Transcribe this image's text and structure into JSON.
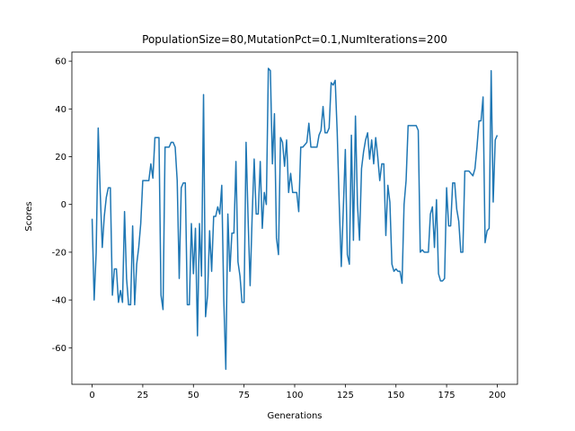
{
  "chart_data": {
    "type": "line",
    "title": "PopulationSize=80,MutationPct=0.1,NumIterations=200",
    "x_label": "Generations",
    "y_label": "Scores",
    "color": "#1f77b4",
    "values": [
      -6,
      -40,
      -20,
      32,
      5,
      -18,
      -5,
      3,
      7,
      7,
      -38,
      -27,
      -27,
      -41,
      -36,
      -41,
      -3,
      -31,
      -42,
      -42,
      -9,
      -42,
      -25,
      -18,
      -8,
      10,
      10,
      10,
      10,
      17,
      11,
      28,
      28,
      28,
      -38,
      -44,
      24,
      24,
      24,
      26,
      26,
      24,
      10,
      -31,
      7,
      9,
      9,
      -42,
      -42,
      -8,
      -29,
      -10,
      -55,
      -8,
      -30,
      46,
      -47,
      -38,
      -11,
      -28,
      -5,
      -5,
      -1,
      -4,
      8,
      -40,
      -69,
      -4,
      -28,
      -12,
      -12,
      18,
      -24,
      -30,
      -41,
      -41,
      26,
      -6,
      -34,
      -5,
      19,
      -4,
      -4,
      18,
      -10,
      5,
      0,
      57,
      56,
      17,
      38,
      -14,
      -21,
      28,
      26,
      16,
      27,
      5,
      13,
      5,
      5,
      5,
      -3,
      24,
      24,
      25,
      26,
      34,
      24,
      24,
      24,
      24,
      29,
      31,
      41,
      30,
      30,
      32,
      51,
      50,
      52,
      30,
      0,
      -26,
      -2,
      23,
      -21,
      -25,
      29,
      -15,
      37,
      0,
      -15,
      15,
      22,
      27,
      30,
      19,
      27,
      17,
      28,
      20,
      10,
      17,
      17,
      -13,
      8,
      1,
      -25,
      -28,
      -27,
      -28,
      -28,
      -33,
      0,
      10,
      33,
      33,
      33,
      33,
      33,
      31,
      -20,
      -19,
      -20,
      -20,
      -20,
      -4,
      -1,
      -18,
      2,
      -29,
      -32,
      -32,
      -31,
      7,
      -9,
      -9,
      9,
      9,
      -2,
      -7,
      -20,
      -20,
      14,
      14,
      14,
      13,
      12,
      15,
      24,
      35,
      35,
      45,
      -16,
      -11,
      -10,
      56,
      1,
      27,
      29
    ],
    "xlim": [
      -10,
      210
    ],
    "ylim": [
      -75.3,
      63.8
    ],
    "xticks": [
      0,
      25,
      50,
      75,
      100,
      125,
      150,
      175,
      200
    ],
    "yticks": [
      -60,
      -40,
      -20,
      0,
      20,
      40,
      60
    ]
  }
}
